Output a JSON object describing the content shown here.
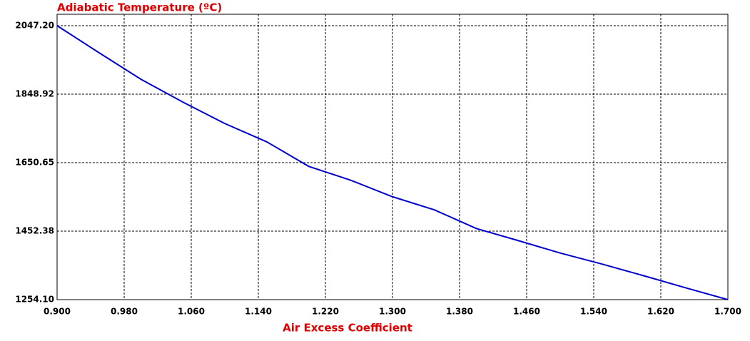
{
  "chart_data": {
    "type": "line",
    "title": "Adiabatic Temperature (ºC)",
    "x_label": "Air Excess Coefficient",
    "x": [
      0.9,
      0.95,
      1.0,
      1.05,
      1.1,
      1.15,
      1.2,
      1.25,
      1.3,
      1.35,
      1.4,
      1.45,
      1.5,
      1.55,
      1.6,
      1.65,
      1.7
    ],
    "series": [
      {
        "color": "#0000cc",
        "values": [
          2047.2,
          1969,
          1892,
          1826,
          1764,
          1711,
          1640,
          1600,
          1552,
          1514,
          1460,
          1425,
          1389,
          1357,
          1323,
          1288,
          1254.1
        ]
      }
    ],
    "xlim": [
      0.9,
      1.7
    ],
    "ylim": [
      1254.1,
      2047.2
    ],
    "xticks": [
      {
        "value": 0.9,
        "label": "0.900"
      },
      {
        "value": 0.98,
        "label": "0.980"
      },
      {
        "value": 1.06,
        "label": "1.060"
      },
      {
        "value": 1.14,
        "label": "1.140"
      },
      {
        "value": 1.22,
        "label": "1.220"
      },
      {
        "value": 1.3,
        "label": "1.300"
      },
      {
        "value": 1.38,
        "label": "1.380"
      },
      {
        "value": 1.46,
        "label": "1.460"
      },
      {
        "value": 1.54,
        "label": "1.540"
      },
      {
        "value": 1.62,
        "label": "1.620"
      },
      {
        "value": 1.7,
        "label": "1.700"
      }
    ],
    "yticks": [
      {
        "value": 1254.1,
        "label": "1254.10"
      },
      1452.38,
      1650.65,
      1848.92,
      {
        "value": 2047.2,
        "label": "2047.20"
      }
    ],
    "grid": true
  }
}
